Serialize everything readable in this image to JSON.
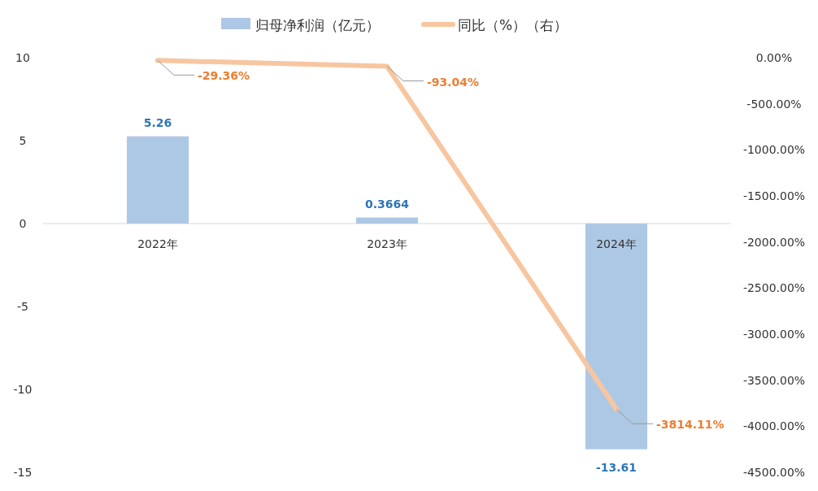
{
  "chart_data": {
    "type": "bar",
    "categories": [
      "2022年",
      "2023年",
      "2024年"
    ],
    "series": [
      {
        "name": "归母净利润（亿元）",
        "color": "#adc8e4",
        "values": [
          5.26,
          0.3664,
          -13.61
        ],
        "value_labels": [
          "5.26",
          "0.3664",
          "-13.61"
        ]
      },
      {
        "name": "同比（%）（右）",
        "type": "line",
        "axis": "y2",
        "color": "#f7c6a0",
        "values": [
          -29.36,
          -93.04,
          -3814.11
        ],
        "value_labels": [
          "-29.36%",
          "-93.04%",
          "-3814.11%"
        ]
      }
    ],
    "ylim": [
      -15,
      10
    ],
    "yticks": [
      10,
      5,
      0,
      -5,
      -10,
      -15
    ],
    "y2lim": [
      -4500,
      0
    ],
    "y2ticks": [
      {
        "value": 0,
        "label": "0.00%"
      },
      {
        "value": -500,
        "label": "-500.00%"
      },
      {
        "value": -1000,
        "label": "-1000.00%"
      },
      {
        "value": -1500,
        "label": "-1500.00%"
      },
      {
        "value": -2000,
        "label": "-2000.00%"
      },
      {
        "value": -2500,
        "label": "-2500.00%"
      },
      {
        "value": -3000,
        "label": "-3000.00%"
      },
      {
        "value": -3500,
        "label": "-3500.00%"
      },
      {
        "value": -4000,
        "label": "-4000.00%"
      },
      {
        "value": -4500,
        "label": "-4500.00%"
      }
    ],
    "legend": "top",
    "grid": false
  }
}
